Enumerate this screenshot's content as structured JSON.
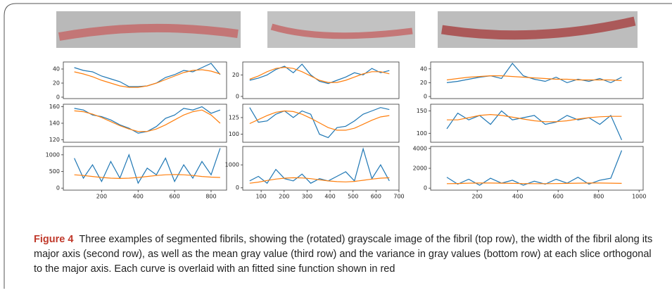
{
  "caption": {
    "label": "Figure 4",
    "text": "Three examples of segmented fibrils, showing the (rotated) grayscale image of the fibril (top row), the width of the fibril along its major axis (second row), as well as the mean gray value (third row) and the variance in gray values (bottom row) at each slice orthogonal to the major axis. Each curve is overlaid with an fitted sine function shown in red"
  },
  "chart_data": [
    {
      "type": "line",
      "x": [
        50,
        100,
        150,
        200,
        250,
        300,
        350,
        400,
        450,
        500,
        550,
        600,
        650,
        700,
        750,
        800,
        850
      ],
      "xlim": [
        -10,
        885
      ],
      "ylim": [
        -2,
        50
      ],
      "yticks": [
        0,
        20,
        40
      ],
      "series": [
        {
          "color": "#1f77b4",
          "values": [
            42,
            38,
            36,
            30,
            26,
            22,
            15,
            15,
            16,
            20,
            28,
            32,
            38,
            36,
            42,
            48,
            32
          ]
        },
        {
          "color": "#ff7f0e",
          "values": [
            36,
            33,
            29,
            24,
            20,
            16,
            14,
            14,
            16,
            20,
            25,
            30,
            35,
            38,
            39,
            37,
            33
          ]
        }
      ]
    },
    {
      "type": "line",
      "x": [
        50,
        100,
        150,
        200,
        250,
        300,
        350,
        400,
        450,
        500,
        550,
        600,
        650,
        700,
        750,
        800,
        850
      ],
      "xlim": [
        -10,
        885
      ],
      "ylim": [
        117,
        163
      ],
      "yticks": [
        120,
        140,
        160
      ],
      "series": [
        {
          "color": "#1f77b4",
          "values": [
            158,
            156,
            150,
            148,
            144,
            138,
            134,
            128,
            130,
            136,
            146,
            150,
            158,
            156,
            160,
            152,
            156
          ]
        },
        {
          "color": "#ff7f0e",
          "values": [
            155,
            154,
            151,
            147,
            142,
            137,
            133,
            130,
            130,
            133,
            138,
            144,
            150,
            154,
            156,
            150,
            140
          ]
        }
      ]
    },
    {
      "type": "line",
      "x": [
        50,
        100,
        150,
        200,
        250,
        300,
        350,
        400,
        450,
        500,
        550,
        600,
        650,
        700,
        750,
        800,
        850
      ],
      "xlim": [
        -10,
        885
      ],
      "ylim": [
        -60,
        1250
      ],
      "yticks": [
        0,
        500,
        1000
      ],
      "xticks": [
        200,
        400,
        600,
        800
      ],
      "series": [
        {
          "color": "#1f77b4",
          "values": [
            900,
            300,
            700,
            200,
            800,
            300,
            1000,
            150,
            600,
            400,
            900,
            200,
            700,
            300,
            800,
            400,
            1200
          ]
        },
        {
          "color": "#ff7f0e",
          "values": [
            400,
            380,
            350,
            320,
            300,
            290,
            300,
            320,
            350,
            380,
            400,
            410,
            400,
            380,
            350,
            330,
            320
          ]
        }
      ]
    },
    {
      "type": "line",
      "x": [
        50,
        88,
        126,
        164,
        202,
        240,
        278,
        316,
        354,
        392,
        430,
        468,
        506,
        544,
        582,
        620,
        658
      ],
      "xlim": [
        20,
        700
      ],
      "ylim": [
        -2,
        32
      ],
      "yticks": [
        0,
        20
      ],
      "series": [
        {
          "color": "#1f77b4",
          "values": [
            15,
            17,
            20,
            25,
            28,
            22,
            30,
            20,
            14,
            12,
            15,
            18,
            22,
            20,
            26,
            22,
            24
          ]
        },
        {
          "color": "#ff7f0e",
          "values": [
            16,
            19,
            23,
            26,
            27,
            26,
            23,
            19,
            15,
            13,
            13,
            15,
            18,
            21,
            23,
            23,
            21
          ]
        }
      ]
    },
    {
      "type": "line",
      "x": [
        50,
        88,
        126,
        164,
        202,
        240,
        278,
        316,
        354,
        392,
        430,
        468,
        506,
        544,
        582,
        620,
        658
      ],
      "xlim": [
        20,
        700
      ],
      "ylim": [
        88,
        145
      ],
      "yticks": [
        100,
        125
      ],
      "series": [
        {
          "color": "#1f77b4",
          "values": [
            140,
            118,
            120,
            130,
            135,
            125,
            135,
            130,
            100,
            95,
            110,
            112,
            120,
            130,
            135,
            140,
            137
          ]
        },
        {
          "color": "#ff7f0e",
          "values": [
            116,
            122,
            128,
            133,
            135,
            134,
            130,
            124,
            117,
            110,
            106,
            106,
            109,
            115,
            121,
            126,
            128
          ]
        }
      ]
    },
    {
      "type": "line",
      "x": [
        50,
        88,
        126,
        164,
        202,
        240,
        278,
        316,
        354,
        392,
        430,
        468,
        506,
        544,
        582,
        620,
        658
      ],
      "xlim": [
        20,
        700
      ],
      "ylim": [
        -100,
        1800
      ],
      "yticks": [
        0,
        1000
      ],
      "xticks": [
        100,
        200,
        300,
        400,
        500,
        600,
        700
      ],
      "series": [
        {
          "color": "#1f77b4",
          "values": [
            300,
            500,
            200,
            800,
            400,
            300,
            600,
            200,
            400,
            300,
            500,
            700,
            300,
            1700,
            400,
            1000,
            300
          ]
        },
        {
          "color": "#ff7f0e",
          "values": [
            200,
            250,
            320,
            380,
            420,
            440,
            430,
            400,
            350,
            300,
            270,
            260,
            280,
            330,
            380,
            420,
            440
          ]
        }
      ]
    },
    {
      "type": "line",
      "x": [
        50,
        104,
        158,
        212,
        266,
        320,
        374,
        428,
        482,
        536,
        590,
        644,
        698,
        752,
        806,
        860,
        914
      ],
      "xlim": [
        -30,
        1020
      ],
      "ylim": [
        -3,
        50
      ],
      "yticks": [
        0,
        20,
        40
      ],
      "series": [
        {
          "color": "#1f77b4",
          "values": [
            20,
            22,
            25,
            28,
            30,
            26,
            48,
            30,
            25,
            22,
            28,
            20,
            25,
            22,
            26,
            20,
            28
          ]
        },
        {
          "color": "#ff7f0e",
          "values": [
            24,
            26,
            28,
            29,
            30,
            30,
            29,
            28,
            27,
            26,
            25,
            25,
            24,
            24,
            24,
            24,
            23
          ]
        }
      ]
    },
    {
      "type": "line",
      "x": [
        50,
        104,
        158,
        212,
        266,
        320,
        374,
        428,
        482,
        536,
        590,
        644,
        698,
        752,
        806,
        860,
        914
      ],
      "xlim": [
        -30,
        1020
      ],
      "ylim": [
        80,
        165
      ],
      "yticks": [
        100,
        150
      ],
      "series": [
        {
          "color": "#1f77b4",
          "values": [
            110,
            145,
            130,
            140,
            120,
            150,
            130,
            135,
            140,
            120,
            125,
            140,
            130,
            135,
            120,
            140,
            85
          ]
        },
        {
          "color": "#ff7f0e",
          "values": [
            130,
            130,
            135,
            140,
            142,
            140,
            136,
            132,
            128,
            126,
            126,
            128,
            132,
            135,
            137,
            138,
            138
          ]
        }
      ]
    },
    {
      "type": "line",
      "x": [
        50,
        104,
        158,
        212,
        266,
        320,
        374,
        428,
        482,
        536,
        590,
        644,
        698,
        752,
        806,
        860,
        914
      ],
      "xlim": [
        -30,
        1020
      ],
      "ylim": [
        -200,
        4200
      ],
      "yticks": [
        0,
        2000,
        4000
      ],
      "xticks": [
        200,
        400,
        600,
        800,
        1000
      ],
      "series": [
        {
          "color": "#1f77b4",
          "values": [
            1100,
            400,
            900,
            300,
            1000,
            500,
            800,
            300,
            700,
            400,
            900,
            500,
            1100,
            400,
            800,
            1000,
            3800
          ]
        },
        {
          "color": "#ff7f0e",
          "values": [
            450,
            470,
            500,
            520,
            520,
            500,
            480,
            460,
            450,
            450,
            460,
            480,
            500,
            520,
            520,
            500,
            480
          ]
        }
      ]
    }
  ]
}
